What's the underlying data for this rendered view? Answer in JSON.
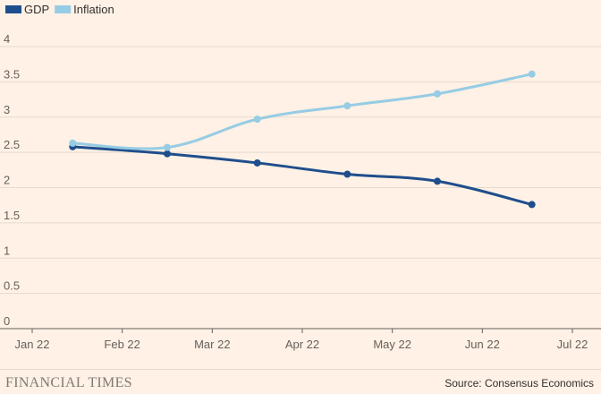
{
  "chart_data": {
    "type": "line",
    "title": "",
    "xlabel": "",
    "ylabel": "",
    "x_ticks": [
      "Jan 22",
      "Feb 22",
      "Mar 22",
      "Apr 22",
      "May 22",
      "Jun 22",
      "Jul 22"
    ],
    "y_ticks": [
      "0",
      "0.5",
      "1",
      "1.5",
      "2",
      "2.5",
      "3",
      "3.5",
      "4"
    ],
    "ylim": [
      0,
      4
    ],
    "xlim": [
      0,
      6
    ],
    "grid": true,
    "legend_position": "top-left",
    "series": [
      {
        "name": "GDP",
        "color": "#1f4e8c",
        "x": [
          0.45,
          1.5,
          2.5,
          3.5,
          4.5,
          5.55
        ],
        "values": [
          2.58,
          2.48,
          2.35,
          2.19,
          2.09,
          1.76
        ]
      },
      {
        "name": "Inflation",
        "color": "#96cce4",
        "x": [
          0.45,
          1.5,
          2.5,
          3.5,
          4.5,
          5.55
        ],
        "values": [
          2.63,
          2.57,
          2.97,
          3.16,
          3.33,
          3.61
        ]
      }
    ]
  },
  "footer": {
    "brand": "FINANCIAL TIMES",
    "source": "Source: Consensus Economics"
  }
}
